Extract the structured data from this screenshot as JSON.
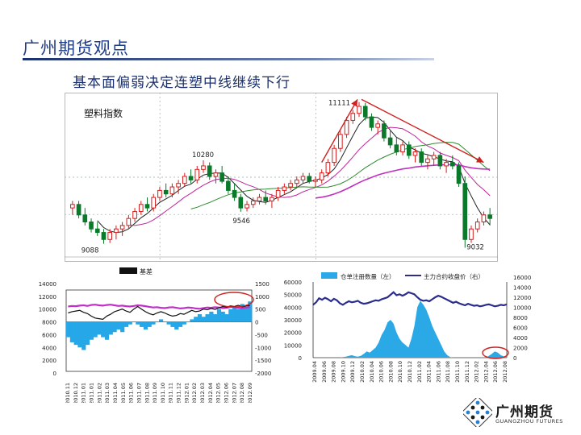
{
  "page": {
    "title": "广州期货观点",
    "subtitle": "基本面偏弱决定连塑中线继续下行"
  },
  "logo": {
    "cn": "广州期货",
    "en": "GUANGZHOU FUTURES"
  },
  "colors": {
    "up": "#d81c1c",
    "down": "#0a7a2a",
    "ma5": "#222222",
    "ma10": "#c0249a",
    "ma20": "#2e8b2e",
    "ma60": "#c030c0",
    "basis_bar": "#26a8e8",
    "basis_line": "#111111",
    "spot": "#c030c8",
    "futures": "#111111",
    "warrant": "#2aa9e6",
    "price": "#2b2d8c",
    "annotation": "#d12020"
  },
  "chart_data": [
    {
      "type": "candlestick",
      "title": "塑料指数",
      "annotations": [
        "11111",
        "10280",
        "9546",
        "9088",
        "9032"
      ],
      "trend_arrows": [
        "up",
        "down"
      ],
      "candles": [
        [
          9600,
          9700,
          9500,
          9650
        ],
        [
          9650,
          9700,
          9450,
          9500
        ],
        [
          9500,
          9600,
          9350,
          9400
        ],
        [
          9400,
          9450,
          9250,
          9300
        ],
        [
          9300,
          9400,
          9200,
          9250
        ],
        [
          9250,
          9300,
          9088,
          9150
        ],
        [
          9150,
          9300,
          9100,
          9250
        ],
        [
          9250,
          9350,
          9150,
          9300
        ],
        [
          9300,
          9400,
          9200,
          9350
        ],
        [
          9350,
          9500,
          9300,
          9450
        ],
        [
          9450,
          9600,
          9400,
          9550
        ],
        [
          9550,
          9700,
          9500,
          9650
        ],
        [
          9650,
          9750,
          9550,
          9600
        ],
        [
          9600,
          9800,
          9550,
          9750
        ],
        [
          9750,
          9900,
          9700,
          9850
        ],
        [
          9850,
          9950,
          9750,
          9800
        ],
        [
          9800,
          9950,
          9750,
          9900
        ],
        [
          9900,
          10000,
          9800,
          9950
        ],
        [
          9950,
          10100,
          9900,
          10050
        ],
        [
          10050,
          10150,
          9950,
          10000
        ],
        [
          10000,
          10200,
          9950,
          10150
        ],
        [
          10150,
          10280,
          10100,
          10200
        ],
        [
          10200,
          10250,
          10000,
          10050
        ],
        [
          10050,
          10150,
          9950,
          10100
        ],
        [
          10100,
          10200,
          9950,
          9980
        ],
        [
          9980,
          10050,
          9800,
          9850
        ],
        [
          9850,
          9950,
          9700,
          9750
        ],
        [
          9750,
          9800,
          9546,
          9600
        ],
        [
          9600,
          9700,
          9550,
          9650
        ],
        [
          9650,
          9750,
          9600,
          9700
        ],
        [
          9700,
          9800,
          9650,
          9750
        ],
        [
          9750,
          9850,
          9650,
          9700
        ],
        [
          9700,
          9800,
          9600,
          9750
        ],
        [
          9750,
          9900,
          9700,
          9850
        ],
        [
          9850,
          9950,
          9800,
          9900
        ],
        [
          9900,
          10000,
          9850,
          9950
        ],
        [
          9950,
          10050,
          9900,
          10000
        ],
        [
          10000,
          10100,
          9950,
          10050
        ],
        [
          10050,
          10100,
          9950,
          9980
        ],
        [
          9980,
          10050,
          9900,
          10000
        ],
        [
          10000,
          10150,
          9950,
          10100
        ],
        [
          10100,
          10300,
          10050,
          10250
        ],
        [
          10250,
          10500,
          10200,
          10450
        ],
        [
          10450,
          10700,
          10400,
          10650
        ],
        [
          10650,
          10900,
          10600,
          10850
        ],
        [
          10850,
          11000,
          10800,
          10950
        ],
        [
          10950,
          11111,
          10900,
          11050
        ],
        [
          11050,
          11100,
          10850,
          10900
        ],
        [
          10900,
          10950,
          10700,
          10750
        ],
        [
          10750,
          10850,
          10650,
          10800
        ],
        [
          10800,
          10850,
          10550,
          10600
        ],
        [
          10600,
          10700,
          10450,
          10500
        ],
        [
          10500,
          10600,
          10350,
          10400
        ],
        [
          10400,
          10550,
          10350,
          10500
        ],
        [
          10500,
          10550,
          10300,
          10350
        ],
        [
          10350,
          10450,
          10250,
          10400
        ],
        [
          10400,
          10450,
          10200,
          10250
        ],
        [
          10250,
          10350,
          10150,
          10300
        ],
        [
          10300,
          10400,
          10200,
          10350
        ],
        [
          10350,
          10400,
          10150,
          10200
        ],
        [
          10200,
          10300,
          10100,
          10250
        ],
        [
          10250,
          10350,
          10150,
          10200
        ],
        [
          10200,
          10250,
          9900,
          9950
        ],
        [
          9950,
          10050,
          9032,
          9150
        ],
        [
          9150,
          9350,
          9100,
          9300
        ],
        [
          9300,
          9450,
          9250,
          9400
        ],
        [
          9400,
          9550,
          9350,
          9500
        ],
        [
          9500,
          9600,
          9350,
          9450
        ]
      ]
    },
    {
      "type": "bar+line",
      "legend": [
        "基差"
      ],
      "y_left_ticks": [
        "14000",
        "12000",
        "10000",
        "8000",
        "6000",
        "4000",
        "2000",
        "0"
      ],
      "y_right_ticks": [
        "1500",
        "1000",
        "500",
        "0",
        "-500",
        "-1000",
        "-1500",
        "-2000"
      ],
      "x_ticks": [
        "2010.11",
        "2010.12",
        "2011.01",
        "2011.01",
        "2011.02",
        "2011.03",
        "2011.04",
        "2011.05",
        "2011.06",
        "2011.07",
        "2011.08",
        "2011.09",
        "2011.10",
        "2011.11",
        "2011.12",
        "2012.01",
        "2012.02",
        "2012.03",
        "2012.04",
        "2012.05",
        "2012.06",
        "2012.07",
        "2012.08",
        "2012.09"
      ],
      "basis": [
        -600,
        -800,
        -900,
        -1000,
        -1100,
        -900,
        -700,
        -600,
        -500,
        -600,
        -700,
        -500,
        -400,
        -300,
        -400,
        -200,
        -100,
        0,
        -100,
        -200,
        -300,
        -200,
        -100,
        0,
        100,
        0,
        -100,
        -200,
        -300,
        -200,
        -100,
        0,
        100,
        200,
        300,
        200,
        300,
        400,
        300,
        500,
        400,
        300,
        500,
        600,
        500,
        700,
        600,
        800
      ],
      "spot": [
        10400,
        10500,
        10450,
        10550,
        10600,
        10500,
        10650,
        10700,
        10600,
        10550,
        10650,
        10700,
        10600,
        10500,
        10550,
        10450,
        10400,
        10500,
        10600,
        10550,
        10450,
        10350,
        10250,
        10300,
        10200,
        10150,
        10250,
        10300,
        10200,
        10100,
        10150,
        10250,
        10200,
        10100,
        10050,
        10150,
        10250,
        10200,
        10300,
        10250,
        10150,
        10200,
        10350,
        10300,
        10200,
        10150,
        10250,
        10300
      ],
      "futures": [
        9400,
        9600,
        9700,
        9800,
        9500,
        9300,
        8900,
        8600,
        8500,
        8400,
        8900,
        9200,
        9600,
        9800,
        10000,
        9700,
        9500,
        10000,
        10400,
        10000,
        9600,
        9300,
        9100,
        9400,
        9600,
        9400,
        9100,
        8900,
        9000,
        9300,
        9200,
        9500,
        9800,
        9600,
        9700,
        10000,
        9900,
        10100,
        9950,
        10200,
        10400,
        10300,
        10500,
        10400,
        10600,
        10350,
        10500,
        10550
      ]
    },
    {
      "type": "area+line",
      "legend": [
        "仓单注册数量（左）",
        "主力合约收盘价（右）"
      ],
      "y_left_ticks": [
        "60000",
        "50000",
        "40000",
        "30000",
        "20000",
        "10000",
        "0"
      ],
      "y_right_ticks": [
        "16000",
        "14000",
        "12000",
        "10000",
        "8000",
        "6000",
        "4000",
        "2000",
        "0"
      ],
      "x_ticks": [
        "2009.04",
        "2009.06",
        "2009.08",
        "2009.10",
        "2009.12",
        "2010.02",
        "2010.04",
        "2010.06",
        "2010.08",
        "2010.10",
        "2010.12",
        "2011.02",
        "2011.04",
        "2011.06",
        "2011.08",
        "2011.10",
        "2011.12",
        "2012.02",
        "2012.04",
        "2012.06",
        "2012.08"
      ],
      "warrants": [
        0,
        0,
        0,
        0,
        0,
        0,
        0,
        0,
        0,
        0,
        500,
        800,
        1500,
        2000,
        1200,
        800,
        1500,
        3000,
        5000,
        4000,
        6000,
        8000,
        12000,
        18000,
        22000,
        28000,
        30000,
        27000,
        20000,
        15000,
        12000,
        10000,
        8000,
        15000,
        25000,
        40000,
        45000,
        42000,
        38000,
        32000,
        25000,
        20000,
        15000,
        10000,
        5000,
        2000,
        500,
        0,
        0,
        0,
        0,
        0,
        0,
        0,
        0,
        0,
        0,
        0,
        0,
        1500,
        3000,
        5000,
        4000,
        2000,
        1000,
        300
      ],
      "price": [
        10500,
        11000,
        11800,
        11500,
        11900,
        11600,
        11200,
        11700,
        11400,
        10800,
        10500,
        10900,
        11200,
        11000,
        11100,
        11300,
        10900,
        10700,
        10800,
        11000,
        11200,
        11400,
        11300,
        11600,
        11800,
        12000,
        12500,
        13000,
        12400,
        12600,
        12300,
        12600,
        13000,
        12800,
        12600,
        12000,
        11500,
        11300,
        11400,
        11200,
        11600,
        12000,
        12300,
        12100,
        11800,
        11500,
        11200,
        10900,
        11100,
        10800,
        10600,
        10400,
        10700,
        10500,
        10300,
        10400,
        10200,
        10300,
        10500,
        10600,
        10400,
        10200,
        10300,
        10500,
        10400,
        10600
      ]
    }
  ]
}
